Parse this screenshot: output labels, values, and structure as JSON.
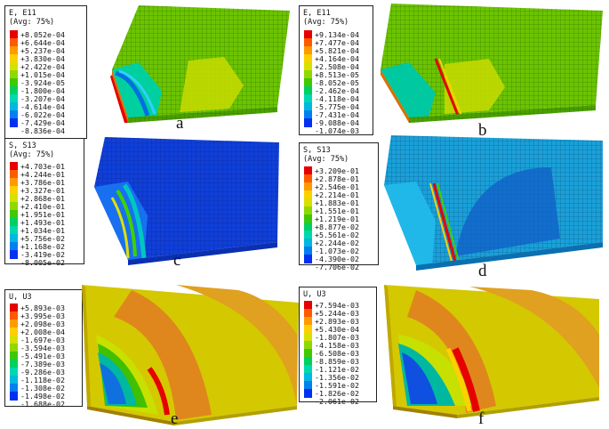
{
  "palette": [
    "#e60000",
    "#ff5a00",
    "#ff9a00",
    "#ffd000",
    "#d8e000",
    "#8fd800",
    "#40c800",
    "#00d060",
    "#00d8b0",
    "#00b8e0",
    "#0080f0",
    "#0030f0"
  ],
  "panels": [
    {
      "id": "a",
      "label": "a",
      "legend_title": "E, E11",
      "legend_avg": "(Avg: 75%)",
      "values": [
        "+8.052e-04",
        "+6.644e-04",
        "+5.237e-04",
        "+3.830e-04",
        "+2.422e-04",
        "+1.015e-04",
        "-3.924e-05",
        "-1.800e-04",
        "-3.207e-04",
        "-4.614e-04",
        "-6.022e-04",
        "-7.429e-04",
        "-8.836e-04"
      ]
    },
    {
      "id": "b",
      "label": "b",
      "legend_title": "E, E11",
      "legend_avg": "(Avg: 75%)",
      "values": [
        "+9.134e-04",
        "+7.477e-04",
        "+5.821e-04",
        "+4.164e-04",
        "+2.508e-04",
        "+8.513e-05",
        "-8.052e-05",
        "-2.462e-04",
        "-4.118e-04",
        "-5.775e-04",
        "-7.431e-04",
        "-9.088e-04",
        "-1.074e-03"
      ]
    },
    {
      "id": "c",
      "label": "c",
      "legend_title": "S, S13",
      "legend_avg": "(Avg: 75%)",
      "values": [
        "+4.703e-01",
        "+4.244e-01",
        "+3.786e-01",
        "+3.327e-01",
        "+2.868e-01",
        "+2.410e-01",
        "+1.951e-01",
        "+1.493e-01",
        "+1.034e-01",
        "+5.756e-02",
        "+1.168e-02",
        "-3.419e-02",
        "-8.005e-02"
      ]
    },
    {
      "id": "d",
      "label": "d",
      "legend_title": "S, S13",
      "legend_avg": "(Avg: 75%)",
      "values": [
        "+3.209e-01",
        "+2.878e-01",
        "+2.546e-01",
        "+2.214e-01",
        "+1.883e-01",
        "+1.551e-01",
        "+1.219e-01",
        "+8.877e-02",
        "+5.561e-02",
        "+2.244e-02",
        "-1.073e-02",
        "-4.390e-02",
        "-7.706e-02"
      ]
    },
    {
      "id": "e",
      "label": "e",
      "legend_title": "U, U3",
      "legend_avg": "",
      "values": [
        "+5.893e-03",
        "+3.995e-03",
        "+2.098e-03",
        "+2.008e-04",
        "-1.697e-03",
        "-3.594e-03",
        "-5.491e-03",
        "-7.389e-03",
        "-9.286e-03",
        "-1.118e-02",
        "-1.308e-02",
        "-1.498e-02",
        "-1.688e-02"
      ]
    },
    {
      "id": "f",
      "label": "f",
      "legend_title": "U, U3",
      "legend_avg": "",
      "values": [
        "+7.594e-03",
        "+5.244e-03",
        "+2.893e-03",
        "+5.430e-04",
        "-1.807e-03",
        "-4.158e-03",
        "-6.508e-03",
        "-8.859e-03",
        "-1.121e-02",
        "-1.356e-02",
        "-1.591e-02",
        "-1.826e-02",
        "-2.061e-02"
      ]
    }
  ]
}
